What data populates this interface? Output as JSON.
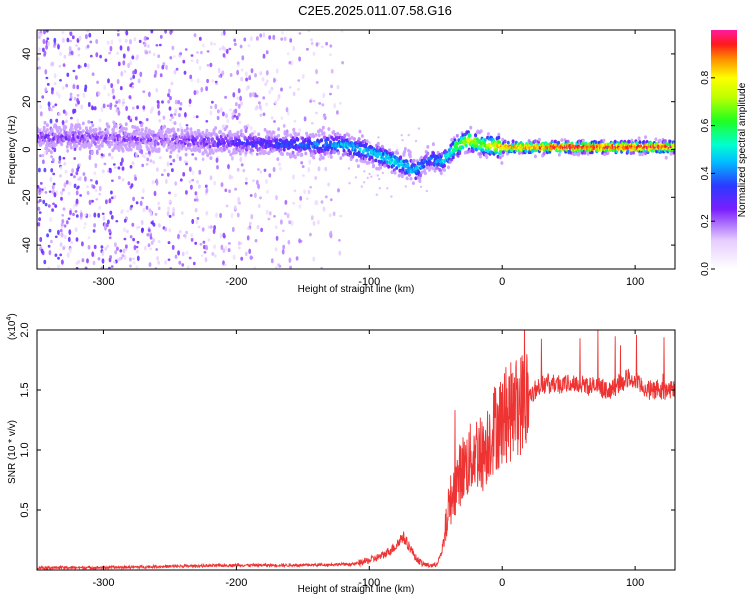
{
  "title": "C2E5.2025.011.07.58.G16",
  "chart_data": [
    {
      "type": "heatmap",
      "xlabel": "Height of straight line (km)",
      "ylabel": "Frequency (Hz)",
      "xlim": [
        -350,
        130
      ],
      "ylim": [
        -50,
        50
      ],
      "xticks": [
        -300,
        -200,
        -100,
        0,
        100
      ],
      "yticks": [
        -40,
        -20,
        0,
        20,
        40
      ],
      "colorbar": {
        "label": "Normalized spectral amplitude",
        "range": [
          0,
          1
        ],
        "ticks": [
          0.0,
          0.2,
          0.4,
          0.6,
          0.8
        ],
        "tick_labels": [
          "0.0",
          "0.2",
          "0.4",
          "0.6",
          "0.8"
        ]
      },
      "ridge": {
        "x": [
          -350,
          -300,
          -250,
          -200,
          -150,
          -120,
          -100,
          -80,
          -65,
          -55,
          -45,
          -35,
          -25,
          -15,
          0,
          50,
          100,
          130
        ],
        "frequency": [
          5,
          5,
          4,
          3,
          2,
          2,
          -1,
          -5,
          -9,
          -4,
          -5,
          1,
          4,
          2,
          1,
          1,
          1,
          1
        ],
        "amplitude": [
          0.22,
          0.2,
          0.2,
          0.28,
          0.36,
          0.45,
          0.45,
          0.5,
          0.45,
          0.35,
          0.45,
          0.6,
          0.75,
          0.65,
          0.85,
          0.95,
          0.95,
          0.95
        ]
      },
      "noise_extent_x": [
        -350,
        -120
      ]
    },
    {
      "type": "line",
      "xlabel": "Height of straight line (km)",
      "ylabel": "SNR (10 * v/v)",
      "scale_label": "(x10",
      "scale_exponent": "4",
      "xlim": [
        -350,
        130
      ],
      "ylim": [
        0,
        2.0
      ],
      "xticks": [
        -300,
        -200,
        -100,
        0,
        100
      ],
      "yticks": [
        0.5,
        1.0,
        1.5,
        2.0
      ],
      "ytick_labels": [
        "0.5",
        "1.0",
        "1.5",
        "2.0"
      ],
      "color": "#ee3333",
      "series": [
        {
          "x": [
            -350,
            -300,
            -250,
            -200,
            -150,
            -110,
            -100,
            -90,
            -80,
            -75,
            -70,
            -65,
            -60,
            -55,
            -50,
            -45,
            -40,
            -35,
            -30,
            -25,
            -20,
            -15,
            -10,
            -5,
            0,
            10,
            20,
            30,
            40,
            60,
            80,
            95,
            110,
            130
          ],
          "values": [
            0.02,
            0.02,
            0.03,
            0.04,
            0.04,
            0.05,
            0.08,
            0.12,
            0.2,
            0.28,
            0.2,
            0.1,
            0.05,
            0.04,
            0.04,
            0.15,
            0.55,
            0.7,
            0.85,
            0.9,
            1.0,
            0.95,
            1.1,
            1.2,
            1.25,
            1.35,
            1.45,
            1.55,
            1.55,
            1.55,
            1.5,
            1.6,
            1.5,
            1.5
          ]
        }
      ]
    }
  ]
}
